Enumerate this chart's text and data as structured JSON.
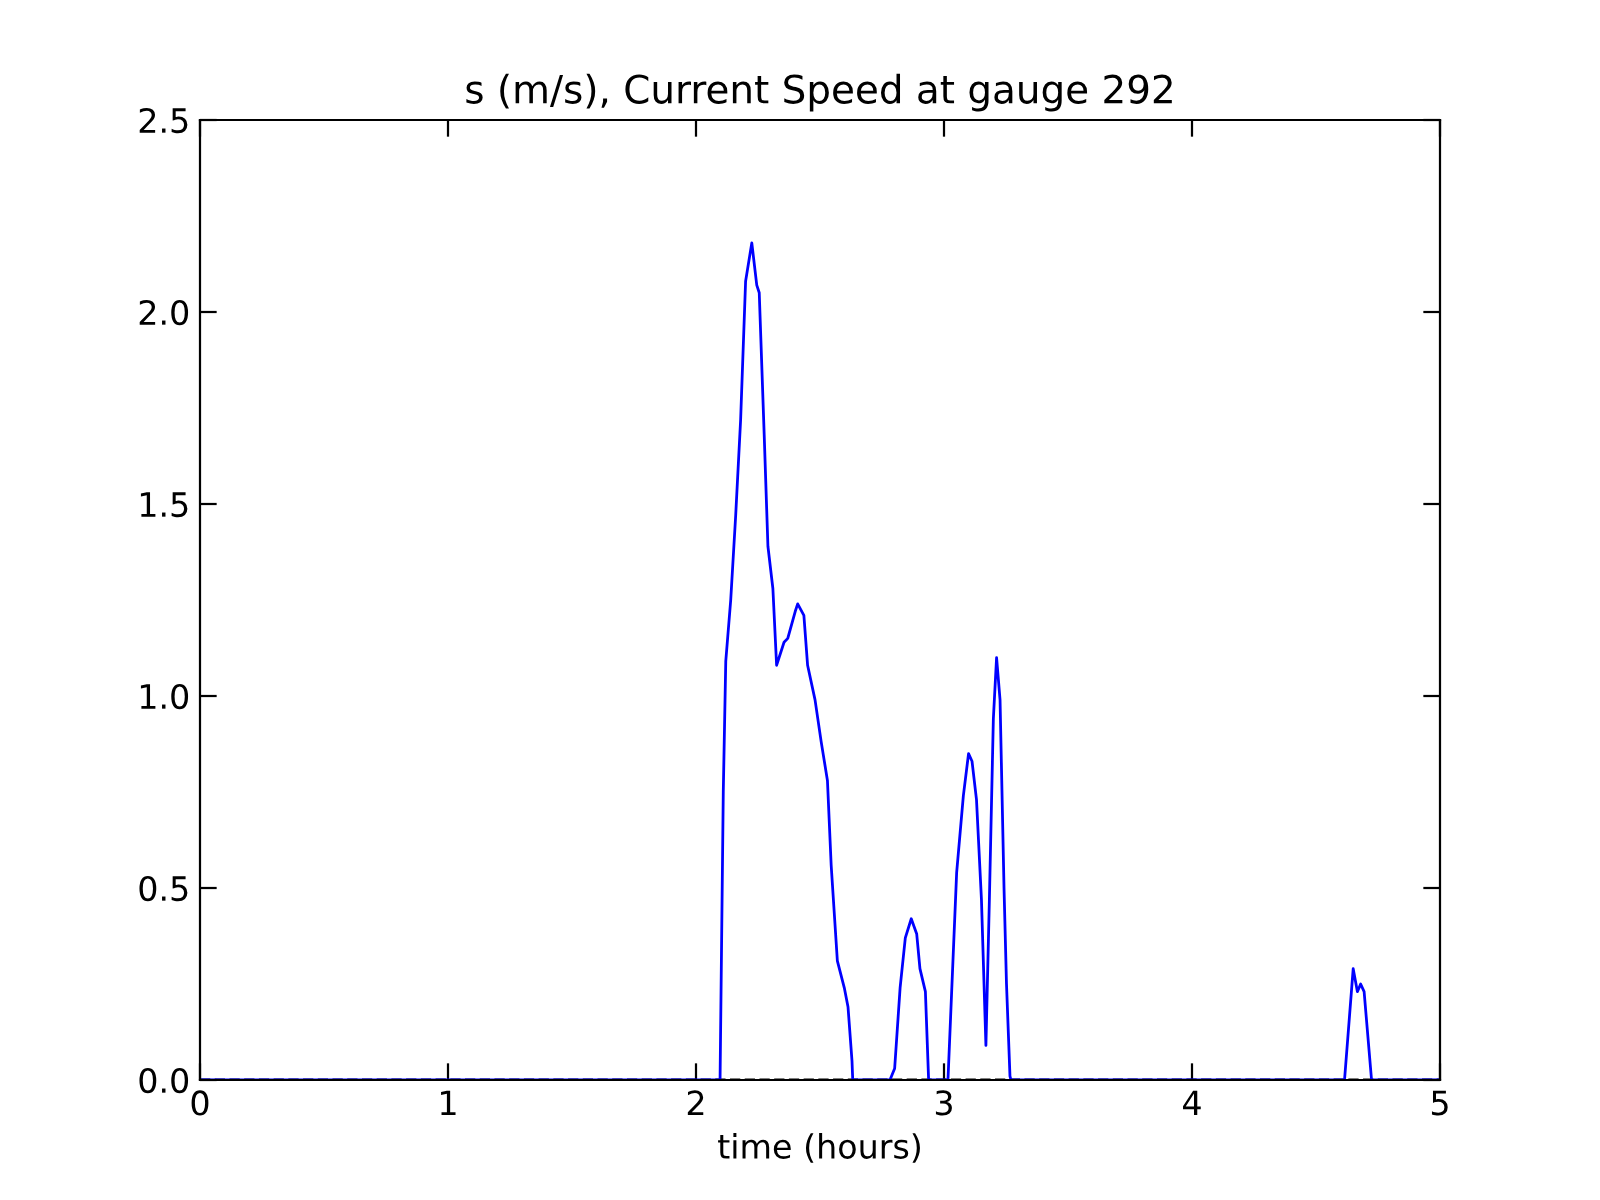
{
  "chart_data": {
    "type": "line",
    "title": "s (m/s), Current Speed at gauge 292",
    "xlabel": "time (hours)",
    "xlim": [
      0,
      5
    ],
    "ylim": [
      0,
      2.5
    ],
    "xticks": [
      0,
      1,
      2,
      3,
      4,
      5
    ],
    "yticks": [
      {
        "value": 0,
        "label": "0.0"
      },
      {
        "value": 0.5,
        "label": "0.5"
      },
      {
        "value": 1,
        "label": "1.0"
      },
      {
        "value": 1.5,
        "label": "1.5"
      },
      {
        "value": 2,
        "label": "2.0"
      },
      {
        "value": 2.5,
        "label": "2.5"
      }
    ],
    "grid": false,
    "legend": false,
    "marker": "none",
    "line_style": "solid",
    "ref_lines": [
      {
        "axis": "y",
        "value": 0,
        "color": "#000000",
        "line_style": "dashed"
      }
    ],
    "series": [
      {
        "color": "#0000ff",
        "x": [
          0,
          2.097,
          2.11,
          2.12,
          2.14,
          2.16,
          2.18,
          2.2,
          2.225,
          2.245,
          2.255,
          2.275,
          2.29,
          2.31,
          2.325,
          2.355,
          2.37,
          2.4,
          2.41,
          2.435,
          2.45,
          2.48,
          2.505,
          2.53,
          2.545,
          2.57,
          2.598,
          2.613,
          2.629,
          2.632,
          2.782,
          2.801,
          2.823,
          2.844,
          2.868,
          2.89,
          2.903,
          2.925,
          2.938,
          3.016,
          3.051,
          3.078,
          3.099,
          3.113,
          3.131,
          3.151,
          3.169,
          3.183,
          3.199,
          3.212,
          3.226,
          3.242,
          3.252,
          3.266,
          3.27,
          4.615,
          4.65,
          4.667,
          4.68,
          4.694,
          4.724,
          5
        ],
        "values": [
          0,
          0,
          0.75,
          1.09,
          1.25,
          1.47,
          1.72,
          2.08,
          2.18,
          2.07,
          2.05,
          1.68,
          1.39,
          1.28,
          1.08,
          1.14,
          1.15,
          1.22,
          1.24,
          1.21,
          1.08,
          0.99,
          0.88,
          0.78,
          0.56,
          0.31,
          0.24,
          0.19,
          0.05,
          0,
          0,
          0.03,
          0.24,
          0.37,
          0.42,
          0.38,
          0.29,
          0.23,
          0,
          0,
          0.54,
          0.74,
          0.85,
          0.83,
          0.73,
          0.47,
          0.09,
          0.47,
          0.94,
          1.1,
          0.99,
          0.5,
          0.25,
          0.01,
          0,
          0,
          0.29,
          0.23,
          0.25,
          0.23,
          0,
          0
        ]
      }
    ]
  }
}
